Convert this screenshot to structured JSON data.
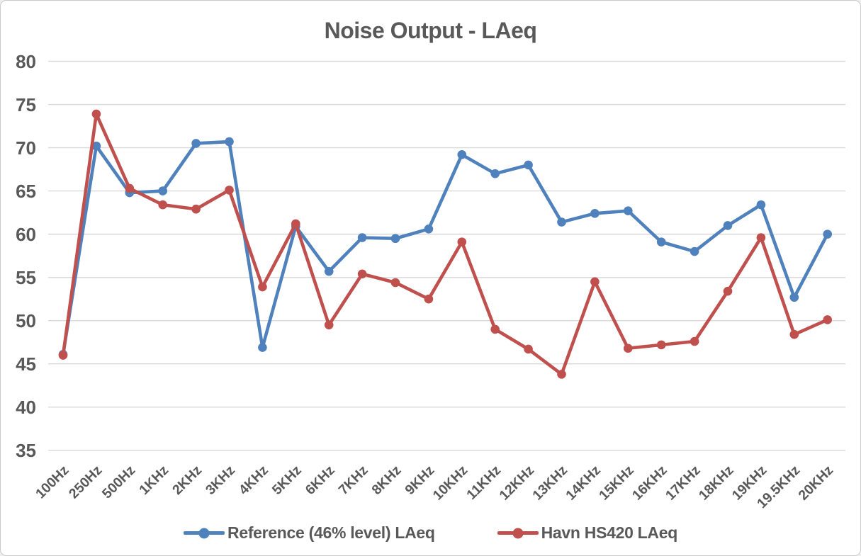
{
  "chart_data": {
    "type": "line",
    "title": "Noise Output - LAeq",
    "categories": [
      "100Hz",
      "250Hz",
      "500Hz",
      "1KHz",
      "2KHz",
      "3KHz",
      "4KHz",
      "5KHz",
      "6KHz",
      "7KHz",
      "8KHz",
      "9KHz",
      "10KHz",
      "11KHz",
      "12KHz",
      "13KHz",
      "14KHz",
      "15KHz",
      "16KHz",
      "17KHz",
      "18KHz",
      "19KHz",
      "19.5KHz",
      "20KHz"
    ],
    "series": [
      {
        "name": "Reference (46% level) LAeq",
        "color": "#4F81BD",
        "values": [
          46.1,
          70.2,
          64.8,
          65.0,
          70.5,
          70.7,
          46.9,
          60.9,
          55.7,
          59.6,
          59.5,
          60.6,
          69.2,
          67.0,
          68.0,
          61.4,
          62.4,
          62.7,
          59.1,
          58.0,
          61.0,
          63.4,
          52.7,
          60.0
        ]
      },
      {
        "name": "Havn HS420 LAeq",
        "color": "#C0504D",
        "values": [
          46.0,
          73.9,
          65.3,
          63.4,
          62.9,
          65.1,
          53.9,
          61.2,
          49.5,
          55.4,
          54.4,
          52.5,
          59.1,
          49.0,
          46.7,
          43.8,
          54.5,
          46.8,
          47.2,
          47.6,
          53.4,
          59.6,
          48.4,
          50.1
        ]
      }
    ],
    "ylim": [
      35,
      80
    ],
    "yticks": [
      80,
      75,
      70,
      65,
      60,
      55,
      50,
      45,
      40,
      35
    ],
    "grid": true,
    "legend_position": "bottom",
    "marker": "circle"
  },
  "styles": {
    "title_color": "#595959",
    "axis_label_color": "#595959",
    "gridline_color": "#D9D9D9",
    "background": "#FFFFFF",
    "border_color": "#CBCBCB"
  }
}
